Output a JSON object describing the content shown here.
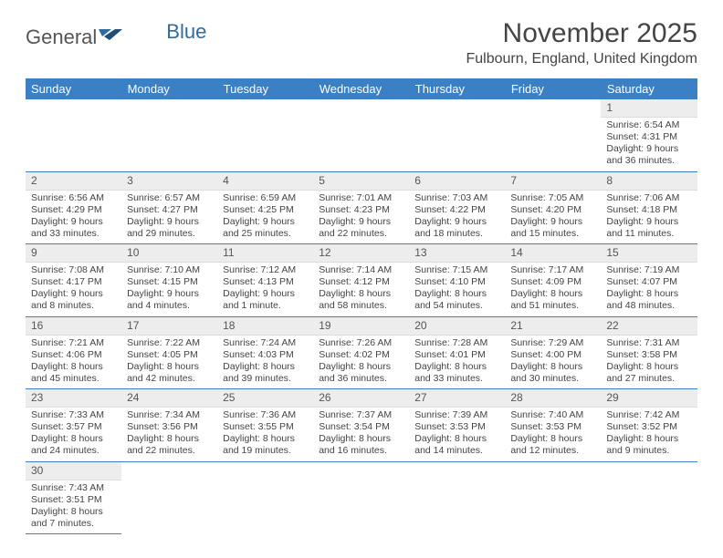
{
  "logo": {
    "text1": "General",
    "text2": "Blue"
  },
  "title": "November 2025",
  "location": "Fulbourn, England, United Kingdom",
  "colors": {
    "header_bg": "#3b7fc4",
    "header_text": "#ffffff",
    "daynum_bg": "#ededed",
    "border": "#3b7fc4",
    "text": "#444444"
  },
  "weekdays": [
    "Sunday",
    "Monday",
    "Tuesday",
    "Wednesday",
    "Thursday",
    "Friday",
    "Saturday"
  ],
  "weeks": [
    [
      null,
      null,
      null,
      null,
      null,
      null,
      {
        "n": "1",
        "sr": "Sunrise: 6:54 AM",
        "ss": "Sunset: 4:31 PM",
        "dl": "Daylight: 9 hours and 36 minutes."
      }
    ],
    [
      {
        "n": "2",
        "sr": "Sunrise: 6:56 AM",
        "ss": "Sunset: 4:29 PM",
        "dl": "Daylight: 9 hours and 33 minutes."
      },
      {
        "n": "3",
        "sr": "Sunrise: 6:57 AM",
        "ss": "Sunset: 4:27 PM",
        "dl": "Daylight: 9 hours and 29 minutes."
      },
      {
        "n": "4",
        "sr": "Sunrise: 6:59 AM",
        "ss": "Sunset: 4:25 PM",
        "dl": "Daylight: 9 hours and 25 minutes."
      },
      {
        "n": "5",
        "sr": "Sunrise: 7:01 AM",
        "ss": "Sunset: 4:23 PM",
        "dl": "Daylight: 9 hours and 22 minutes."
      },
      {
        "n": "6",
        "sr": "Sunrise: 7:03 AM",
        "ss": "Sunset: 4:22 PM",
        "dl": "Daylight: 9 hours and 18 minutes."
      },
      {
        "n": "7",
        "sr": "Sunrise: 7:05 AM",
        "ss": "Sunset: 4:20 PM",
        "dl": "Daylight: 9 hours and 15 minutes."
      },
      {
        "n": "8",
        "sr": "Sunrise: 7:06 AM",
        "ss": "Sunset: 4:18 PM",
        "dl": "Daylight: 9 hours and 11 minutes."
      }
    ],
    [
      {
        "n": "9",
        "sr": "Sunrise: 7:08 AM",
        "ss": "Sunset: 4:17 PM",
        "dl": "Daylight: 9 hours and 8 minutes."
      },
      {
        "n": "10",
        "sr": "Sunrise: 7:10 AM",
        "ss": "Sunset: 4:15 PM",
        "dl": "Daylight: 9 hours and 4 minutes."
      },
      {
        "n": "11",
        "sr": "Sunrise: 7:12 AM",
        "ss": "Sunset: 4:13 PM",
        "dl": "Daylight: 9 hours and 1 minute."
      },
      {
        "n": "12",
        "sr": "Sunrise: 7:14 AM",
        "ss": "Sunset: 4:12 PM",
        "dl": "Daylight: 8 hours and 58 minutes."
      },
      {
        "n": "13",
        "sr": "Sunrise: 7:15 AM",
        "ss": "Sunset: 4:10 PM",
        "dl": "Daylight: 8 hours and 54 minutes."
      },
      {
        "n": "14",
        "sr": "Sunrise: 7:17 AM",
        "ss": "Sunset: 4:09 PM",
        "dl": "Daylight: 8 hours and 51 minutes."
      },
      {
        "n": "15",
        "sr": "Sunrise: 7:19 AM",
        "ss": "Sunset: 4:07 PM",
        "dl": "Daylight: 8 hours and 48 minutes."
      }
    ],
    [
      {
        "n": "16",
        "sr": "Sunrise: 7:21 AM",
        "ss": "Sunset: 4:06 PM",
        "dl": "Daylight: 8 hours and 45 minutes."
      },
      {
        "n": "17",
        "sr": "Sunrise: 7:22 AM",
        "ss": "Sunset: 4:05 PM",
        "dl": "Daylight: 8 hours and 42 minutes."
      },
      {
        "n": "18",
        "sr": "Sunrise: 7:24 AM",
        "ss": "Sunset: 4:03 PM",
        "dl": "Daylight: 8 hours and 39 minutes."
      },
      {
        "n": "19",
        "sr": "Sunrise: 7:26 AM",
        "ss": "Sunset: 4:02 PM",
        "dl": "Daylight: 8 hours and 36 minutes."
      },
      {
        "n": "20",
        "sr": "Sunrise: 7:28 AM",
        "ss": "Sunset: 4:01 PM",
        "dl": "Daylight: 8 hours and 33 minutes."
      },
      {
        "n": "21",
        "sr": "Sunrise: 7:29 AM",
        "ss": "Sunset: 4:00 PM",
        "dl": "Daylight: 8 hours and 30 minutes."
      },
      {
        "n": "22",
        "sr": "Sunrise: 7:31 AM",
        "ss": "Sunset: 3:58 PM",
        "dl": "Daylight: 8 hours and 27 minutes."
      }
    ],
    [
      {
        "n": "23",
        "sr": "Sunrise: 7:33 AM",
        "ss": "Sunset: 3:57 PM",
        "dl": "Daylight: 8 hours and 24 minutes."
      },
      {
        "n": "24",
        "sr": "Sunrise: 7:34 AM",
        "ss": "Sunset: 3:56 PM",
        "dl": "Daylight: 8 hours and 22 minutes."
      },
      {
        "n": "25",
        "sr": "Sunrise: 7:36 AM",
        "ss": "Sunset: 3:55 PM",
        "dl": "Daylight: 8 hours and 19 minutes."
      },
      {
        "n": "26",
        "sr": "Sunrise: 7:37 AM",
        "ss": "Sunset: 3:54 PM",
        "dl": "Daylight: 8 hours and 16 minutes."
      },
      {
        "n": "27",
        "sr": "Sunrise: 7:39 AM",
        "ss": "Sunset: 3:53 PM",
        "dl": "Daylight: 8 hours and 14 minutes."
      },
      {
        "n": "28",
        "sr": "Sunrise: 7:40 AM",
        "ss": "Sunset: 3:53 PM",
        "dl": "Daylight: 8 hours and 12 minutes."
      },
      {
        "n": "29",
        "sr": "Sunrise: 7:42 AM",
        "ss": "Sunset: 3:52 PM",
        "dl": "Daylight: 8 hours and 9 minutes."
      }
    ],
    [
      {
        "n": "30",
        "sr": "Sunrise: 7:43 AM",
        "ss": "Sunset: 3:51 PM",
        "dl": "Daylight: 8 hours and 7 minutes."
      },
      null,
      null,
      null,
      null,
      null,
      null
    ]
  ]
}
